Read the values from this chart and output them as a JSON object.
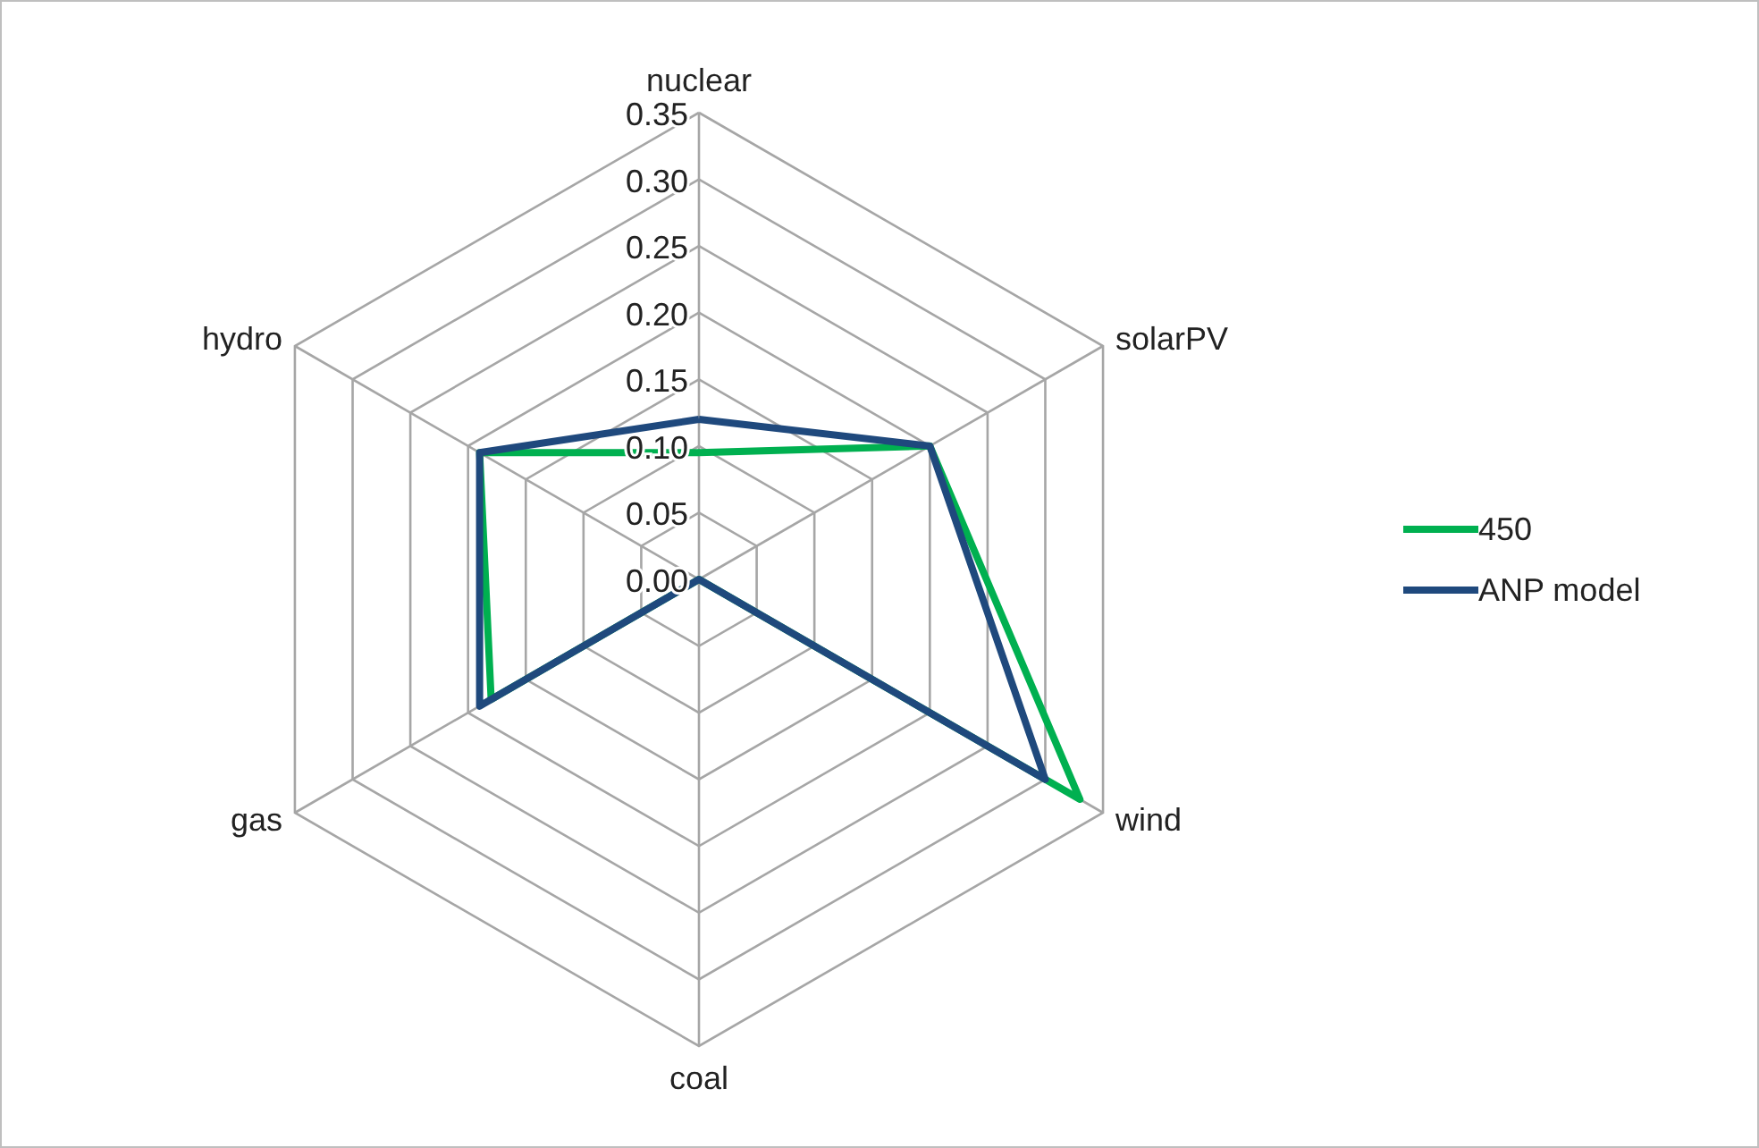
{
  "chart_data": {
    "type": "radar",
    "categories": [
      "nuclear",
      "solarPV",
      "wind",
      "coal",
      "gas",
      "hydro"
    ],
    "series": [
      {
        "name": "450",
        "color": "#00b050",
        "values": [
          0.095,
          0.2,
          0.33,
          0,
          0.18,
          0.19
        ]
      },
      {
        "name": "ANP model",
        "color": "#1f497d",
        "values": [
          0.12,
          0.2,
          0.3,
          0,
          0.19,
          0.19
        ]
      }
    ],
    "ylim": [
      0,
      0.35
    ],
    "yticks": [
      {
        "value": 0,
        "label": "0.00"
      },
      {
        "value": 0.05,
        "label": "0.05"
      },
      {
        "value": 0.1,
        "label": "0.10"
      },
      {
        "value": 0.15,
        "label": "0.15"
      },
      {
        "value": 0.2,
        "label": "0.20"
      },
      {
        "value": 0.25,
        "label": "0.25"
      },
      {
        "value": 0.3,
        "label": "0.30"
      },
      {
        "value": 0.35,
        "label": "0.35"
      }
    ],
    "grid": true,
    "legend": "right",
    "marker": "none"
  }
}
